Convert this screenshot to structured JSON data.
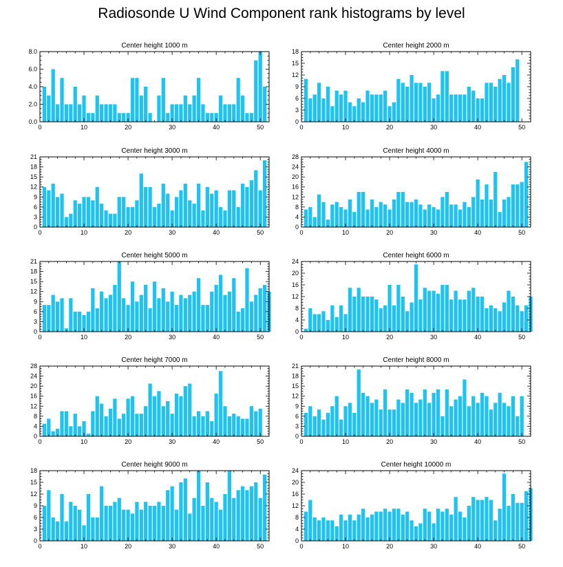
{
  "title": "Radiosonde U Wind Component rank histograms by level",
  "chart_data": [
    {
      "type": "bar",
      "title": "Center height 1000 m",
      "xlim": [
        0,
        52
      ],
      "xticks": [
        0,
        10,
        20,
        30,
        40,
        50
      ],
      "ylim": [
        0,
        8
      ],
      "yticks": [
        0,
        2,
        4,
        6,
        8
      ],
      "ytick_labels": [
        "0.0",
        "2.0",
        "4.0",
        "6.0",
        "8.0"
      ],
      "values": [
        4,
        3,
        6,
        2,
        5,
        2,
        2,
        4,
        2,
        3,
        1,
        1,
        3,
        2,
        2,
        2,
        2,
        1,
        1,
        1,
        5,
        5,
        3,
        4,
        1,
        0,
        3,
        5,
        1,
        2,
        2,
        2,
        3,
        2,
        3,
        5,
        2,
        1,
        1,
        1,
        3,
        2,
        2,
        2,
        5,
        3,
        1,
        1,
        7,
        8,
        4
      ]
    },
    {
      "type": "bar",
      "title": "Center height 2000 m",
      "xlim": [
        0,
        52
      ],
      "xticks": [
        0,
        10,
        20,
        30,
        40,
        50
      ],
      "ylim": [
        0,
        18
      ],
      "yticks": [
        0,
        3,
        6,
        9,
        12,
        15,
        18
      ],
      "ytick_labels": [
        "0",
        "3",
        "6",
        "9",
        "12",
        "15",
        "18"
      ],
      "values": [
        11,
        6,
        7,
        10,
        6,
        9,
        4,
        8,
        7,
        8,
        5,
        4,
        6,
        5,
        8,
        7,
        7,
        7,
        8,
        4,
        5,
        11,
        10,
        9,
        12,
        10,
        10,
        9,
        10,
        6,
        7,
        13,
        13,
        7,
        7,
        7,
        7,
        9,
        8,
        6,
        6,
        10,
        10,
        9,
        11,
        12,
        10,
        14,
        16
      ]
    },
    {
      "type": "bar",
      "title": "Center height 3000 m",
      "xlim": [
        0,
        52
      ],
      "xticks": [
        0,
        10,
        20,
        30,
        40,
        50
      ],
      "ylim": [
        0,
        21
      ],
      "yticks": [
        0,
        3,
        6,
        9,
        12,
        15,
        18,
        21
      ],
      "ytick_labels": [
        "0",
        "3",
        "6",
        "9",
        "12",
        "15",
        "18",
        "21"
      ],
      "values": [
        12,
        11,
        13,
        9,
        10,
        3,
        4,
        8,
        7,
        9,
        9,
        8,
        12,
        7,
        5,
        4,
        4,
        9,
        9,
        6,
        6,
        8,
        16,
        12,
        12,
        6,
        7,
        13,
        10,
        5,
        9,
        11,
        13,
        8,
        7,
        13,
        5,
        12,
        10,
        11,
        6,
        5,
        11,
        11,
        6,
        13,
        12,
        14,
        17,
        11,
        20
      ]
    },
    {
      "type": "bar",
      "title": "Center height 4000 m",
      "xlim": [
        0,
        52
      ],
      "xticks": [
        0,
        10,
        20,
        30,
        40,
        50
      ],
      "ylim": [
        0,
        28
      ],
      "yticks": [
        0,
        4,
        8,
        12,
        16,
        20,
        24,
        28
      ],
      "ytick_labels": [
        "0",
        "4",
        "8",
        "12",
        "16",
        "20",
        "24",
        "28"
      ],
      "values": [
        7,
        8,
        4,
        13,
        10,
        3,
        9,
        10,
        8,
        7,
        11,
        6,
        14,
        14,
        7,
        11,
        8,
        10,
        9,
        7,
        11,
        14,
        14,
        10,
        10,
        11,
        9,
        7,
        9,
        8,
        7,
        12,
        14,
        9,
        9,
        7,
        10,
        8,
        12,
        19,
        11,
        17,
        11,
        22,
        6,
        11,
        12,
        17,
        17,
        18,
        26
      ]
    },
    {
      "type": "bar",
      "title": "Center height 5000 m",
      "xlim": [
        0,
        52
      ],
      "xticks": [
        0,
        10,
        20,
        30,
        40,
        50
      ],
      "ylim": [
        0,
        21
      ],
      "yticks": [
        0,
        3,
        6,
        9,
        12,
        15,
        18,
        21
      ],
      "ytick_labels": [
        "0",
        "3",
        "6",
        "9",
        "12",
        "15",
        "18",
        "21"
      ],
      "values": [
        8,
        8,
        11,
        9,
        10,
        1,
        10,
        6,
        6,
        5,
        6,
        13,
        7,
        12,
        10,
        11,
        14,
        21,
        10,
        8,
        15,
        9,
        11,
        14,
        7,
        15,
        10,
        13,
        9,
        12,
        8,
        11,
        10,
        11,
        12,
        16,
        8,
        8,
        12,
        14,
        17,
        11,
        12,
        16,
        6,
        7,
        19,
        9,
        11,
        13,
        14,
        12
      ]
    },
    {
      "type": "bar",
      "title": "Center height 6000 m",
      "xlim": [
        0,
        52
      ],
      "xticks": [
        0,
        10,
        20,
        30,
        40,
        50
      ],
      "ylim": [
        0,
        24
      ],
      "yticks": [
        0,
        4,
        8,
        12,
        16,
        20,
        24
      ],
      "ytick_labels": [
        "0",
        "4",
        "8",
        "12",
        "16",
        "20",
        "24"
      ],
      "values": [
        1,
        8,
        6,
        6,
        7,
        4,
        9,
        5,
        9,
        6,
        15,
        12,
        15,
        12,
        12,
        12,
        11,
        8,
        9,
        16,
        9,
        16,
        12,
        7,
        10,
        23,
        11,
        15,
        14,
        14,
        13,
        16,
        16,
        11,
        14,
        11,
        11,
        14,
        15,
        12,
        12,
        8,
        9,
        8,
        7,
        10,
        14,
        12,
        9,
        7,
        9,
        12
      ]
    },
    {
      "type": "bar",
      "title": "Center height 7000 m",
      "xlim": [
        0,
        52
      ],
      "xticks": [
        0,
        10,
        20,
        30,
        40,
        50
      ],
      "ylim": [
        0,
        28
      ],
      "yticks": [
        0,
        4,
        8,
        12,
        16,
        20,
        24,
        28
      ],
      "ytick_labels": [
        "0",
        "4",
        "8",
        "12",
        "16",
        "20",
        "24",
        "28"
      ],
      "values": [
        5,
        7,
        2,
        3,
        10,
        10,
        4,
        9,
        4,
        6,
        1,
        10,
        16,
        13,
        8,
        11,
        15,
        7,
        9,
        15,
        16,
        9,
        9,
        12,
        21,
        16,
        18,
        12,
        14,
        9,
        17,
        16,
        20,
        21,
        8,
        10,
        8,
        10,
        6,
        17,
        26,
        12,
        8,
        9,
        8,
        7,
        7,
        12,
        10,
        11
      ]
    },
    {
      "type": "bar",
      "title": "Center height 8000 m",
      "xlim": [
        0,
        52
      ],
      "xticks": [
        0,
        10,
        20,
        30,
        40,
        50
      ],
      "ylim": [
        0,
        21
      ],
      "yticks": [
        0,
        3,
        6,
        9,
        12,
        15,
        18,
        21
      ],
      "ytick_labels": [
        "0",
        "3",
        "6",
        "9",
        "12",
        "15",
        "18",
        "21"
      ],
      "values": [
        7,
        9,
        6,
        8,
        5,
        7,
        9,
        12,
        5,
        9,
        10,
        7,
        20,
        13,
        12,
        10,
        11,
        8,
        14,
        8,
        8,
        11,
        10,
        14,
        13,
        10,
        11,
        14,
        10,
        13,
        14,
        6,
        14,
        9,
        11,
        12,
        17,
        9,
        12,
        10,
        13,
        12,
        8,
        10,
        13,
        10,
        9,
        12,
        6,
        12
      ]
    },
    {
      "type": "bar",
      "title": "Center height 9000 m",
      "xlim": [
        0,
        52
      ],
      "xticks": [
        0,
        10,
        20,
        30,
        40,
        50
      ],
      "ylim": [
        0,
        18
      ],
      "yticks": [
        0,
        3,
        6,
        9,
        12,
        15,
        18
      ],
      "ytick_labels": [
        "0",
        "3",
        "6",
        "9",
        "12",
        "15",
        "18"
      ],
      "values": [
        9,
        13,
        6,
        5,
        12,
        5,
        10,
        9,
        8,
        4,
        12,
        6,
        6,
        14,
        9,
        9,
        10,
        11,
        8,
        8,
        7,
        10,
        8,
        10,
        9,
        9,
        10,
        9,
        13,
        14,
        8,
        15,
        16,
        7,
        11,
        18,
        9,
        15,
        11,
        10,
        8,
        12,
        18,
        11,
        13,
        14,
        13,
        14,
        15,
        11,
        17
      ]
    },
    {
      "type": "bar",
      "title": "Center height 10000 m",
      "xlim": [
        0,
        52
      ],
      "xticks": [
        0,
        10,
        20,
        30,
        40,
        50
      ],
      "ylim": [
        0,
        24
      ],
      "yticks": [
        0,
        4,
        8,
        12,
        16,
        20,
        24
      ],
      "ytick_labels": [
        "0",
        "4",
        "8",
        "12",
        "16",
        "20",
        "24"
      ],
      "values": [
        10,
        14,
        8,
        7,
        8,
        7,
        7,
        5,
        9,
        7,
        9,
        7,
        9,
        11,
        8,
        9,
        10,
        10,
        11,
        10,
        11,
        11,
        9,
        10,
        7,
        5,
        6,
        11,
        10,
        6,
        11,
        10,
        11,
        9,
        15,
        10,
        8,
        12,
        15,
        14,
        14,
        15,
        14,
        7,
        11,
        23,
        12,
        16,
        13,
        13,
        17,
        18
      ]
    }
  ]
}
